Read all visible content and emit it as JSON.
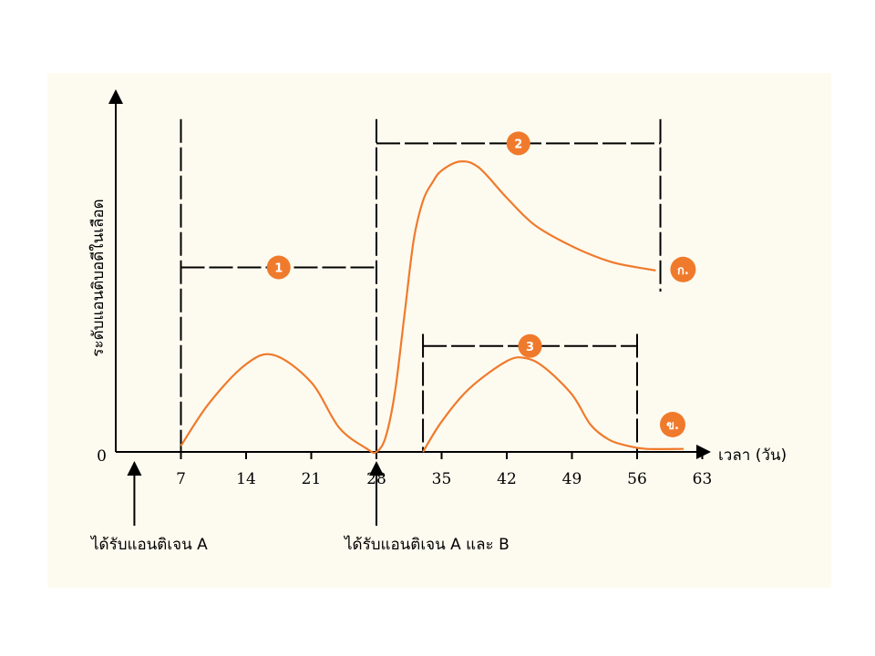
{
  "chart_data": {
    "type": "line",
    "xlabel": "เวลา (วัน)",
    "ylabel": "ระดับแอนติบอดีในเลือด",
    "x_ticks": [
      7,
      14,
      21,
      28,
      35,
      42,
      49,
      56,
      63
    ],
    "y_ticks": [
      0
    ],
    "xlim": [
      0,
      65
    ],
    "ylim": [
      0,
      100
    ],
    "grid": false,
    "colors": {
      "curve": "#f07a2c",
      "badge": "#f07a2c",
      "axis": "#000000"
    },
    "series": [
      {
        "name": "ก.",
        "label": "ก.",
        "x": [
          7,
          10,
          14,
          17,
          21,
          24,
          27,
          28,
          29,
          30,
          31,
          32,
          33,
          34,
          35,
          37,
          39,
          42,
          45,
          49,
          53,
          56,
          58
        ],
        "y": [
          2,
          16,
          29,
          32,
          23,
          8,
          1,
          0,
          5,
          20,
          45,
          70,
          83,
          89,
          93,
          96,
          94,
          84,
          75,
          68,
          63,
          61,
          60
        ]
      },
      {
        "name": "ข.",
        "label": "ข.",
        "x": [
          33,
          35,
          38,
          42,
          44,
          46,
          49,
          51,
          53,
          55,
          57,
          61
        ],
        "y": [
          0,
          10,
          21,
          30,
          31,
          28,
          19,
          9,
          4,
          2,
          1,
          1
        ]
      }
    ],
    "intervals": [
      {
        "label": "1",
        "x_start": 7,
        "x_end": 28,
        "y": 61
      },
      {
        "label": "2",
        "x_start": 28,
        "x_end": 58.5,
        "y": 102
      },
      {
        "label": "3",
        "x_start": 33,
        "x_end": 56,
        "y": 35
      }
    ],
    "boundary_lines": [
      {
        "x": 7,
        "y_top": 110
      },
      {
        "x": 28,
        "y_top": 110
      },
      {
        "x": 58.5,
        "y_top": 110,
        "y_bottom": 53
      },
      {
        "x": 33,
        "y_top": 39
      },
      {
        "x": 56,
        "y_top": 39
      }
    ],
    "annotations": [
      {
        "text": "ได้รับแอนติเจน A",
        "x": 2
      },
      {
        "text": "ได้รับแอนติเจน A และ B",
        "x": 28
      }
    ]
  }
}
